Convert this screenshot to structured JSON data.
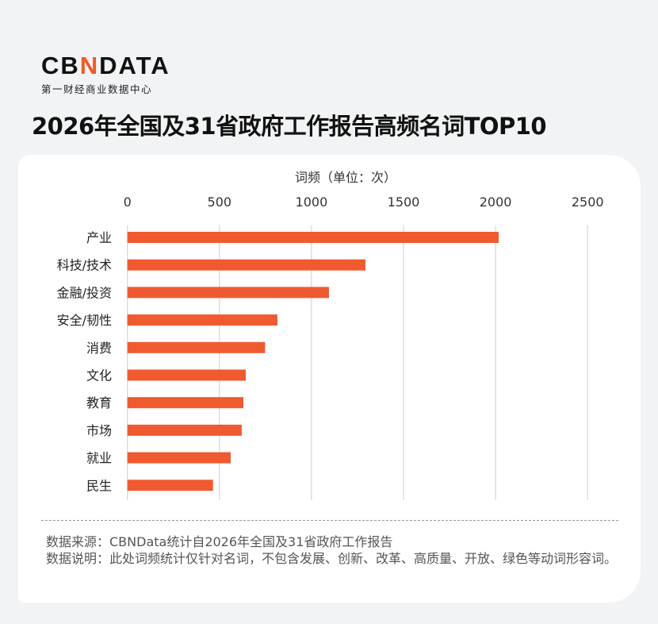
{
  "logo": {
    "main_pre": "CB",
    "main_accent": "N",
    "main_post": "DATA",
    "sub": "第一财经商业数据中心"
  },
  "title": "2026年全国及31省政府工作报告高频名词TOP10",
  "colors": {
    "bar": "#f05a30",
    "grid": "#d9d9d9",
    "accent": "#f05a28"
  },
  "chart_data": {
    "type": "bar",
    "orientation": "horizontal",
    "title": "2026年全国及31省政府工作报告高频名词TOP10",
    "xlabel": "词频（单位：次）",
    "xlim": [
      0,
      2500
    ],
    "xticks": [
      0,
      500,
      1000,
      1500,
      2000,
      2500
    ],
    "x_axis_position": "top",
    "grid": true,
    "categories": [
      "产业",
      "科技/技术",
      "金融/投资",
      "安全/韧性",
      "消费",
      "文化",
      "教育",
      "市场",
      "就业",
      "民生"
    ],
    "values": [
      2017,
      1293,
      1095,
      815,
      748,
      643,
      630,
      621,
      561,
      465
    ]
  },
  "notes": {
    "source": "数据来源：CBNData统计自2026年全国及31省政府工作报告",
    "explanation": "数据说明：此处词频统计仅针对名词，不包含发展、创新、改革、高质量、开放、绿色等动词形容词。"
  }
}
